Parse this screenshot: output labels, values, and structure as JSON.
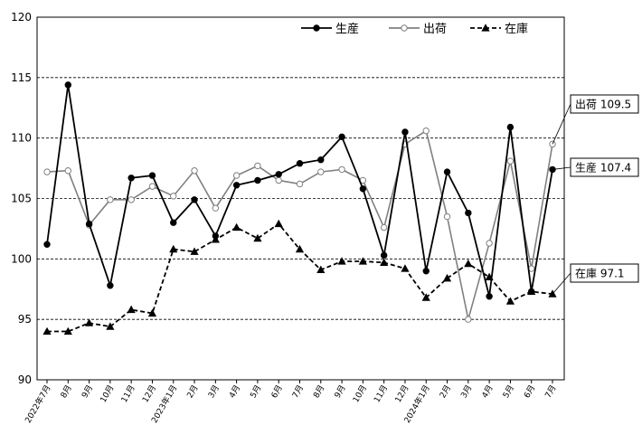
{
  "chart_data": {
    "type": "line",
    "categories": [
      "2022年7月",
      "8月",
      "9月",
      "10月",
      "11月",
      "12月",
      "2023年1月",
      "2月",
      "3月",
      "4月",
      "5月",
      "6月",
      "7月",
      "8月",
      "9月",
      "10月",
      "11月",
      "12月",
      "2024年1月",
      "2月",
      "3月",
      "4月",
      "5月",
      "6月",
      "7月"
    ],
    "ylim": [
      90,
      120
    ],
    "yticks": [
      90,
      95,
      100,
      105,
      110,
      115,
      120
    ],
    "grid": "horizontal-dashed",
    "legend_position": "top-right",
    "series": [
      {
        "name": "生産",
        "style": "solid-filled-circle",
        "color": "#000000",
        "values": [
          101.2,
          114.4,
          102.9,
          97.8,
          106.7,
          106.9,
          103.0,
          104.9,
          101.9,
          106.1,
          106.5,
          107.0,
          107.9,
          108.2,
          110.1,
          105.8,
          100.3,
          110.5,
          99.0,
          107.2,
          103.8,
          96.9,
          110.9,
          97.3,
          107.4
        ]
      },
      {
        "name": "出荷",
        "style": "solid-open-circle",
        "color": "#808080",
        "values": [
          107.2,
          107.3,
          102.8,
          104.9,
          104.9,
          106.0,
          105.2,
          107.3,
          104.2,
          106.9,
          107.7,
          106.5,
          106.2,
          107.2,
          107.4,
          106.5,
          102.6,
          109.5,
          110.6,
          103.5,
          95.0,
          101.3,
          108.1,
          99.2,
          109.5
        ]
      },
      {
        "name": "在庫",
        "style": "dashed-filled-triangle",
        "color": "#000000",
        "values": [
          94.0,
          94.0,
          94.7,
          94.4,
          95.8,
          95.5,
          100.8,
          100.6,
          101.6,
          102.6,
          101.7,
          102.9,
          100.8,
          99.1,
          99.8,
          99.8,
          99.7,
          99.2,
          96.8,
          98.4,
          99.6,
          98.5,
          96.5,
          97.3,
          97.1
        ]
      }
    ],
    "callouts": [
      {
        "series": 1,
        "label": "出荷 109.5"
      },
      {
        "series": 0,
        "label": "生産 107.4"
      },
      {
        "series": 2,
        "label": "在庫 97.1"
      }
    ]
  }
}
